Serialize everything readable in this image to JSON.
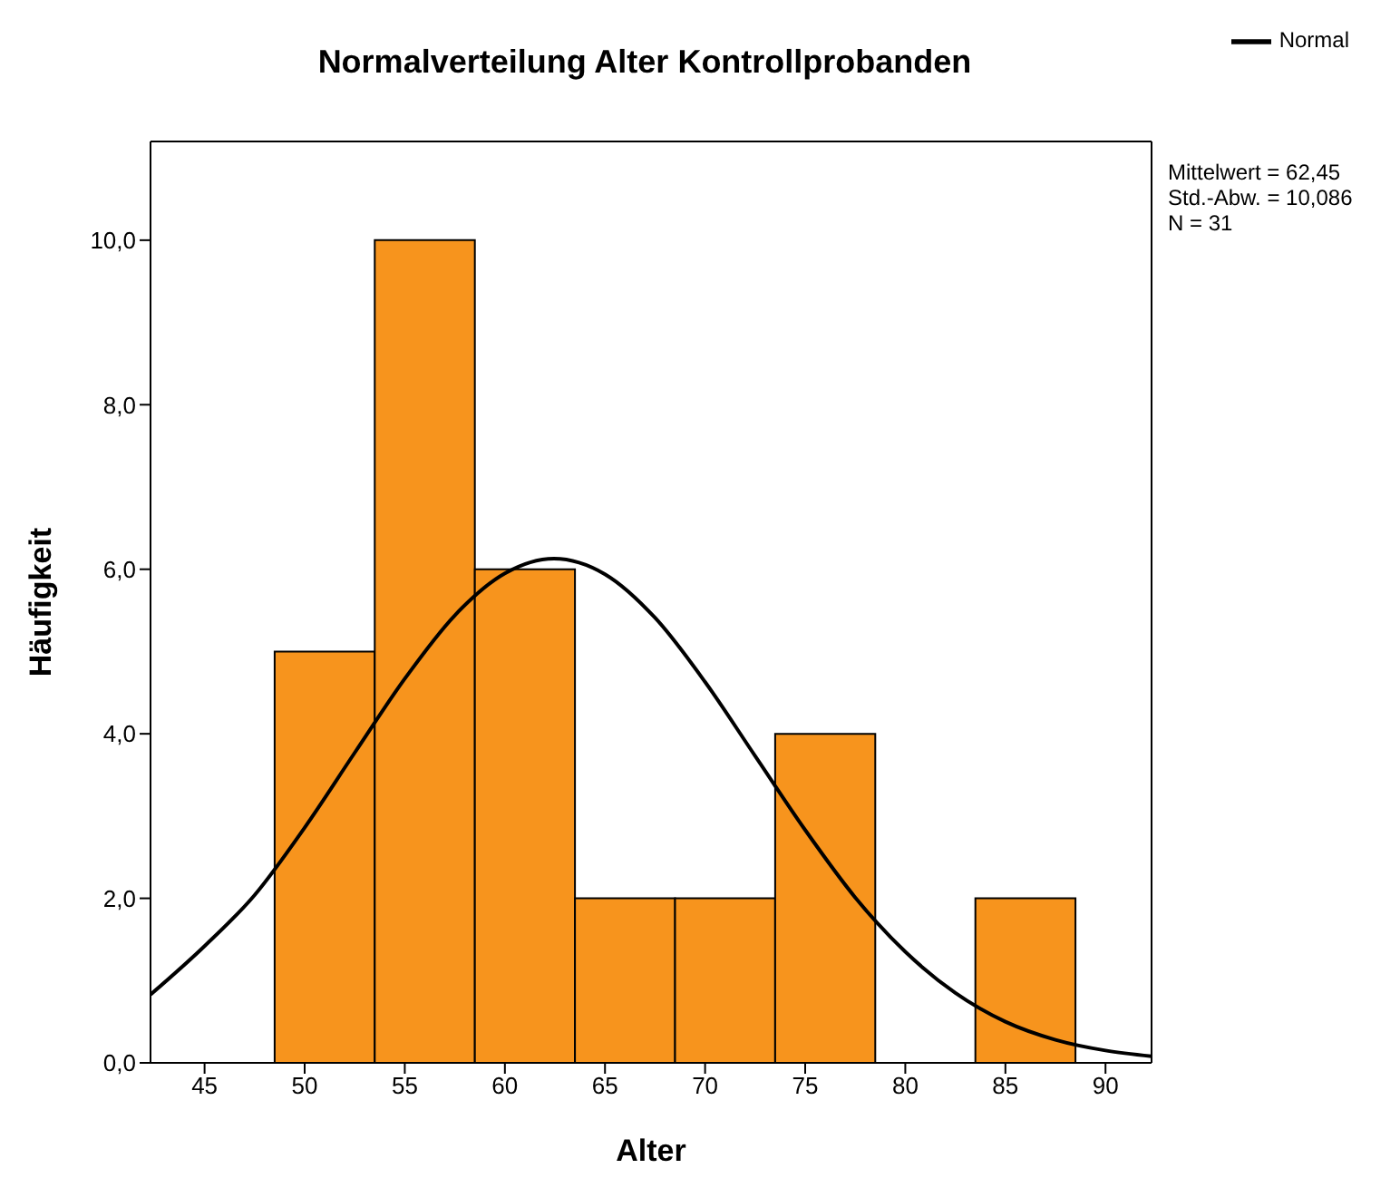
{
  "chart_data": {
    "type": "histogram",
    "title": "Normalverteilung Alter Kontrollprobanden",
    "xlabel": "Alter",
    "ylabel": "Häufigkeit",
    "series": [
      {
        "color": "#f7941d",
        "bins": [
          48.5,
          53.5,
          58.5,
          63.5,
          68.5,
          73.5,
          78.5,
          83.5,
          88.5
        ],
        "values": [
          5,
          10,
          6,
          2,
          2,
          4,
          0,
          2
        ]
      },
      {
        "type": "line",
        "name": "Normal",
        "color": "#000000",
        "x": [
          42.3,
          45,
          47.5,
          50,
          52.5,
          55,
          57.5,
          60,
          62.45,
          65,
          67.5,
          70,
          72.5,
          75,
          77.5,
          80,
          82.5,
          85,
          87.5,
          90,
          92.3
        ],
        "values": [
          0.83,
          1.42,
          2.04,
          2.86,
          3.77,
          4.67,
          5.44,
          5.95,
          6.13,
          5.94,
          5.41,
          4.63,
          3.73,
          2.83,
          2.01,
          1.35,
          0.85,
          0.5,
          0.28,
          0.15,
          0.08
        ]
      }
    ],
    "xlim": [
      42.3,
      92.3
    ],
    "xticks": [
      45,
      50,
      55,
      60,
      65,
      70,
      75,
      80,
      85,
      90
    ],
    "ylim": [
      0,
      11.2
    ],
    "yticks": [
      {
        "value": 0,
        "label": "0,0"
      },
      {
        "value": 2,
        "label": "2,0"
      },
      {
        "value": 4,
        "label": "4,0"
      },
      {
        "value": 6,
        "label": "6,0"
      },
      {
        "value": 8,
        "label": "8,0"
      },
      {
        "value": 10,
        "label": "10,0"
      }
    ],
    "legend": "top right",
    "grid": false,
    "annotations": [
      "Mittelwert = 62,45",
      "Std.-Abw. = 10,086",
      "N = 31"
    ]
  }
}
